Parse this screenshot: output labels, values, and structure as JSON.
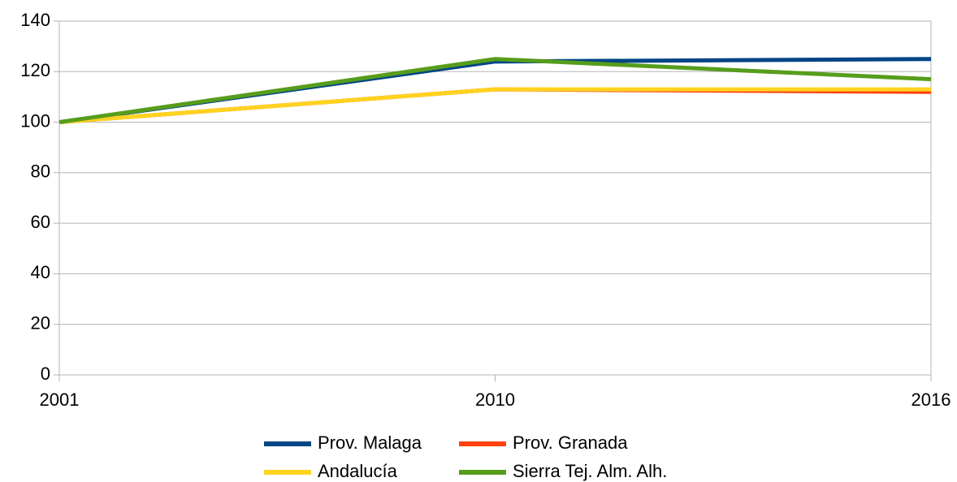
{
  "chart_data": {
    "type": "line",
    "categories": [
      "2001",
      "2010",
      "2016"
    ],
    "series": [
      {
        "name": "Prov. Malaga",
        "color": "#004586",
        "values": [
          100,
          124,
          125
        ]
      },
      {
        "name": "Prov. Granada",
        "color": "#ff420e",
        "values": [
          100,
          113,
          112
        ]
      },
      {
        "name": "Andalucía",
        "color": "#ffd320",
        "values": [
          100,
          113,
          113
        ]
      },
      {
        "name": "Sierra Tej. Alm. Alh.",
        "color": "#579d1c",
        "values": [
          100,
          125,
          117
        ]
      }
    ],
    "ylim": [
      0,
      140
    ],
    "yticks": [
      0,
      20,
      40,
      60,
      80,
      100,
      120,
      140
    ],
    "grid": true,
    "legend": "bottom"
  }
}
